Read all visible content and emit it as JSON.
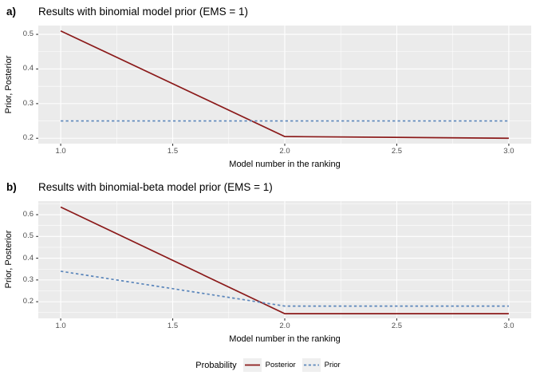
{
  "page": {
    "background": "#FFFFFF"
  },
  "colors": {
    "posterior": "#8B1A1A",
    "prior": "#5B86BB",
    "panel_background": "#EBEBEB",
    "gridline": "#FFFFFF",
    "tick_mark": "#333333",
    "tick_label": "#4D4D4D",
    "legend_key_background": "#EFEFEF"
  },
  "legend": {
    "title": "Probability",
    "entries": [
      {
        "label": "Posterior",
        "line_style": "solid"
      },
      {
        "label": "Prior",
        "line_style": "dashed"
      }
    ],
    "position": "bottom"
  },
  "chart_data": [
    {
      "type": "line",
      "tag": "a)",
      "title": "Results with binomial model prior (EMS = 1)",
      "xlabel": "Model number in the ranking",
      "ylabel": "Prior, Posterior",
      "x": [
        1,
        2,
        3
      ],
      "series": [
        {
          "name": "Posterior",
          "style": "solid",
          "values": [
            0.51,
            0.205,
            0.2
          ]
        },
        {
          "name": "Prior",
          "style": "dashed",
          "values": [
            0.25,
            0.25,
            0.25
          ]
        }
      ],
      "x_ticks": [
        "1.0",
        "1.5",
        "2.0",
        "2.5",
        "3.0"
      ],
      "x_tick_values": [
        1,
        1.5,
        2,
        2.5,
        3
      ],
      "y_ticks": [
        "0.2",
        "0.3",
        "0.4",
        "0.5"
      ],
      "y_tick_values": [
        0.2,
        0.3,
        0.4,
        0.5
      ],
      "xlim": [
        0.9,
        3.1
      ],
      "ylim": [
        0.1845,
        0.5255
      ],
      "x_minor": [
        1.25,
        1.75,
        2.25,
        2.75
      ],
      "y_minor": [
        0.25,
        0.35,
        0.45
      ],
      "grid": true,
      "legend_position": "bottom"
    },
    {
      "type": "line",
      "tag": "b)",
      "title": "Results with binomial-beta model prior (EMS = 1)",
      "xlabel": "Model number in the ranking",
      "ylabel": "Prior, Posterior",
      "x": [
        1,
        2,
        3
      ],
      "series": [
        {
          "name": "Posterior",
          "style": "solid",
          "values": [
            0.635,
            0.145,
            0.145
          ]
        },
        {
          "name": "Prior",
          "style": "dashed",
          "values": [
            0.34,
            0.18,
            0.18
          ]
        }
      ],
      "x_ticks": [
        "1.0",
        "1.5",
        "2.0",
        "2.5",
        "3.0"
      ],
      "x_tick_values": [
        1,
        1.5,
        2,
        2.5,
        3
      ],
      "y_ticks": [
        "0.2",
        "0.3",
        "0.4",
        "0.5",
        "0.6"
      ],
      "y_tick_values": [
        0.2,
        0.3,
        0.4,
        0.5,
        0.6
      ],
      "xlim": [
        0.9,
        3.1
      ],
      "ylim": [
        0.1235,
        0.6625
      ],
      "x_minor": [
        1.25,
        1.75,
        2.25,
        2.75
      ],
      "y_minor": [
        0.15,
        0.25,
        0.35,
        0.45,
        0.55,
        0.65
      ],
      "grid": true,
      "legend_position": "bottom"
    }
  ]
}
